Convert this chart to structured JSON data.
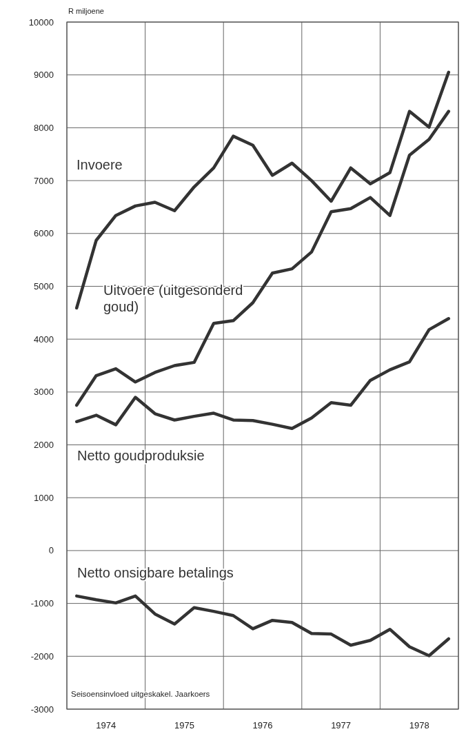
{
  "chart_data": {
    "type": "line",
    "ylabel": "R miljoene",
    "x": [
      1974.125,
      1974.375,
      1974.625,
      1974.875,
      1975.125,
      1975.375,
      1975.625,
      1975.875,
      1976.125,
      1976.375,
      1976.625,
      1976.875,
      1977.125,
      1977.375,
      1977.625,
      1977.875,
      1978.125,
      1978.375,
      1978.625,
      1978.875
    ],
    "series": [
      {
        "name": "Invoere",
        "color": "#333333",
        "values": [
          4590,
          5870,
          6340,
          6520,
          6590,
          6430,
          6880,
          7240,
          7840,
          7670,
          7100,
          7330,
          7000,
          6610,
          7240,
          6940,
          7150,
          8310,
          8010,
          9050
        ]
      },
      {
        "name": "Uitvoere (uitgesonderd goud)",
        "color": "#333333",
        "values": [
          2750,
          3310,
          3440,
          3190,
          3370,
          3500,
          3560,
          4300,
          4350,
          4690,
          5250,
          5330,
          5650,
          6410,
          6470,
          6680,
          6340,
          7480,
          7780,
          8310
        ]
      },
      {
        "name": "Netto goudproduksie",
        "color": "#333333",
        "values": [
          2440,
          2560,
          2380,
          2900,
          2590,
          2470,
          2540,
          2600,
          2470,
          2460,
          2390,
          2310,
          2510,
          2800,
          2750,
          3220,
          3420,
          3570,
          4180,
          4390
        ]
      },
      {
        "name": "Netto onsigbare betalings",
        "color": "#333333",
        "values": [
          -860,
          -930,
          -990,
          -860,
          -1200,
          -1390,
          -1080,
          -1150,
          -1230,
          -1480,
          -1320,
          -1360,
          -1570,
          -1580,
          -1790,
          -1700,
          -1490,
          -1820,
          -1990,
          -1670
        ]
      }
    ],
    "xlim": [
      1974,
      1979
    ],
    "xticks": [
      {
        "value": 1974,
        "label": null
      },
      {
        "value": 1974.5,
        "label": "1974"
      },
      {
        "value": 1975,
        "label": null
      },
      {
        "value": 1975.5,
        "label": "1975"
      },
      {
        "value": 1976,
        "label": null
      },
      {
        "value": 1976.5,
        "label": "1976"
      },
      {
        "value": 1977,
        "label": null
      },
      {
        "value": 1977.5,
        "label": "1977"
      },
      {
        "value": 1978,
        "label": null
      },
      {
        "value": 1978.5,
        "label": "1978"
      },
      {
        "value": 1979,
        "label": null
      }
    ],
    "ylim": [
      -3000,
      10000
    ],
    "yticks": [
      -3000,
      -2000,
      -1000,
      0,
      1000,
      2000,
      3000,
      4000,
      5000,
      6000,
      7000,
      8000,
      9000,
      10000
    ],
    "grid": true,
    "legend": false,
    "line_style": "solid",
    "marker": "none",
    "annotations": [
      "Seisoensinvloed uitgeskakel. Jaarkoers"
    ]
  }
}
